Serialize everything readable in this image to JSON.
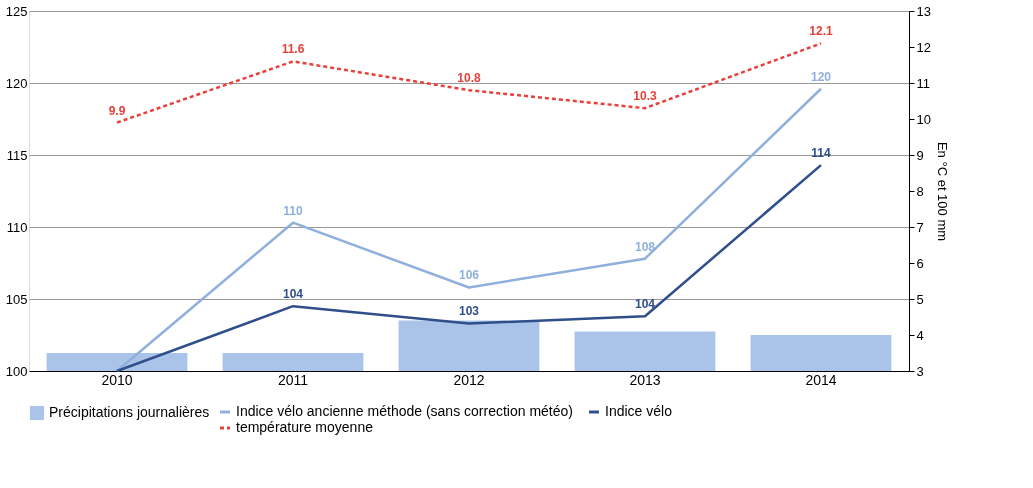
{
  "chart_data": {
    "type": "bar",
    "categories": [
      "2010",
      "2011",
      "2012",
      "2013",
      "2014"
    ],
    "y2label": "En °C et 100 mm",
    "ylim": [
      100,
      125
    ],
    "yticks": [
      100,
      105,
      110,
      115,
      120,
      125
    ],
    "y2lim": [
      3,
      13
    ],
    "y2ticks": [
      3,
      4,
      5,
      6,
      7,
      8,
      9,
      10,
      11,
      12,
      13
    ],
    "grid": "y",
    "legend": "bottom",
    "series": [
      {
        "name": "Précipitations journalières",
        "axis": "y2",
        "color": "#a9c4e8",
        "values": [
          3.5,
          3.5,
          4.4,
          4.1,
          4.0
        ]
      },
      {
        "name": "Indice vélo ancienne méthode (sans correction météo)",
        "type": "line",
        "color": "#8fb0dd",
        "values": [
          100,
          110.3,
          105.8,
          107.8,
          119.6
        ],
        "value_labels": [
          null,
          "110",
          "106",
          "108",
          "120"
        ]
      },
      {
        "name": "Indice vélo",
        "type": "line",
        "color": "#2f4f8a",
        "values": [
          100,
          104.5,
          103.3,
          103.8,
          114.3
        ],
        "value_labels": [
          null,
          "104",
          "103",
          "104",
          "114"
        ]
      },
      {
        "name": "température moyenne",
        "type": "line",
        "axis": "y2",
        "color": "#e8403a",
        "line_style": "dashed",
        "values": [
          9.9,
          11.6,
          10.8,
          10.3,
          12.1
        ],
        "value_labels": [
          "9.9",
          "11.6",
          "10.8",
          "10.3",
          "12.1"
        ]
      }
    ]
  }
}
